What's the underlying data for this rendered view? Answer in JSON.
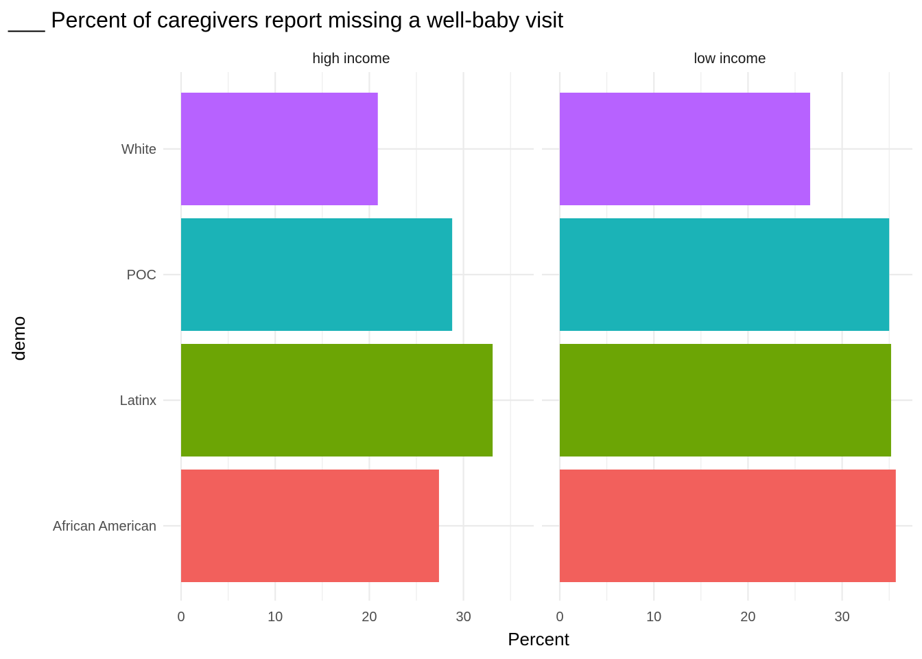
{
  "chart_data": {
    "type": "bar",
    "orientation": "horizontal",
    "title": "___ Percent of caregivers report missing a well-baby visit",
    "xlabel": "Percent",
    "ylabel": "demo",
    "categories": [
      "African American",
      "Latinx",
      "POC",
      "White"
    ],
    "xlim": [
      0,
      37.5
    ],
    "x_ticks": [
      0,
      10,
      20,
      30
    ],
    "grid": true,
    "legend": "none",
    "colors": {
      "African American": "#F2605C",
      "Latinx": "#6CA505",
      "POC": "#1BB3B7",
      "White": "#B762FF"
    },
    "panels": [
      {
        "name": "high income",
        "values": [
          27.4,
          33.1,
          28.8,
          20.9
        ]
      },
      {
        "name": "low income",
        "values": [
          35.7,
          35.2,
          35.0,
          26.6
        ]
      }
    ]
  }
}
